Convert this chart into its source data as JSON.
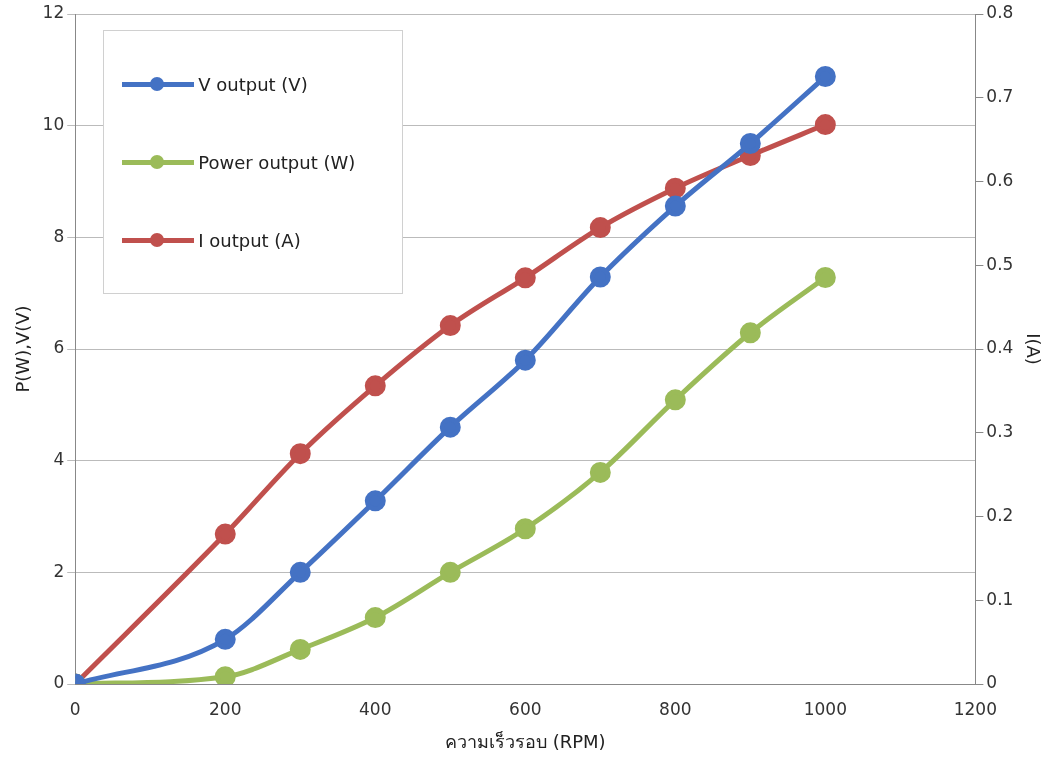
{
  "chart_data": {
    "type": "line",
    "xlabel": "ความเร็วรอบ (RPM)",
    "ylabel": "P(W),V(V)",
    "y2label": "I(A)",
    "x": [
      0,
      200,
      300,
      400,
      500,
      600,
      700,
      800,
      900,
      1000
    ],
    "series": [
      {
        "name": "V output (V)",
        "color": "#4472c4",
        "values": [
          0,
          0.8,
          2.0,
          3.28,
          4.6,
          5.8,
          7.29,
          8.56,
          9.68,
          10.88
        ]
      },
      {
        "name": "Power output (W)",
        "color": "#9bbb59",
        "values": [
          0,
          0.13,
          0.62,
          1.19,
          2.0,
          2.78,
          3.79,
          5.09,
          6.29,
          7.28
        ]
      },
      {
        "name": "I output (A)",
        "color": "#c0504d",
        "axis": "y2",
        "values": [
          0,
          0.179,
          0.275,
          0.356,
          0.428,
          0.485,
          0.545,
          0.592,
          0.631,
          0.668
        ]
      }
    ],
    "xlim": [
      0,
      1200
    ],
    "xticks": [
      0,
      200,
      400,
      600,
      800,
      1000,
      1200
    ],
    "ylim": [
      0,
      12
    ],
    "yticks": [
      0,
      2,
      4,
      6,
      8,
      10,
      12
    ],
    "y2lim": [
      0,
      0.8
    ],
    "y2ticks": [
      0,
      0.1,
      0.2,
      0.3,
      0.4,
      0.5,
      0.6,
      0.7,
      0.8
    ],
    "grid": "y",
    "legend": "top left",
    "marker": "circle",
    "line_style": "solid"
  }
}
